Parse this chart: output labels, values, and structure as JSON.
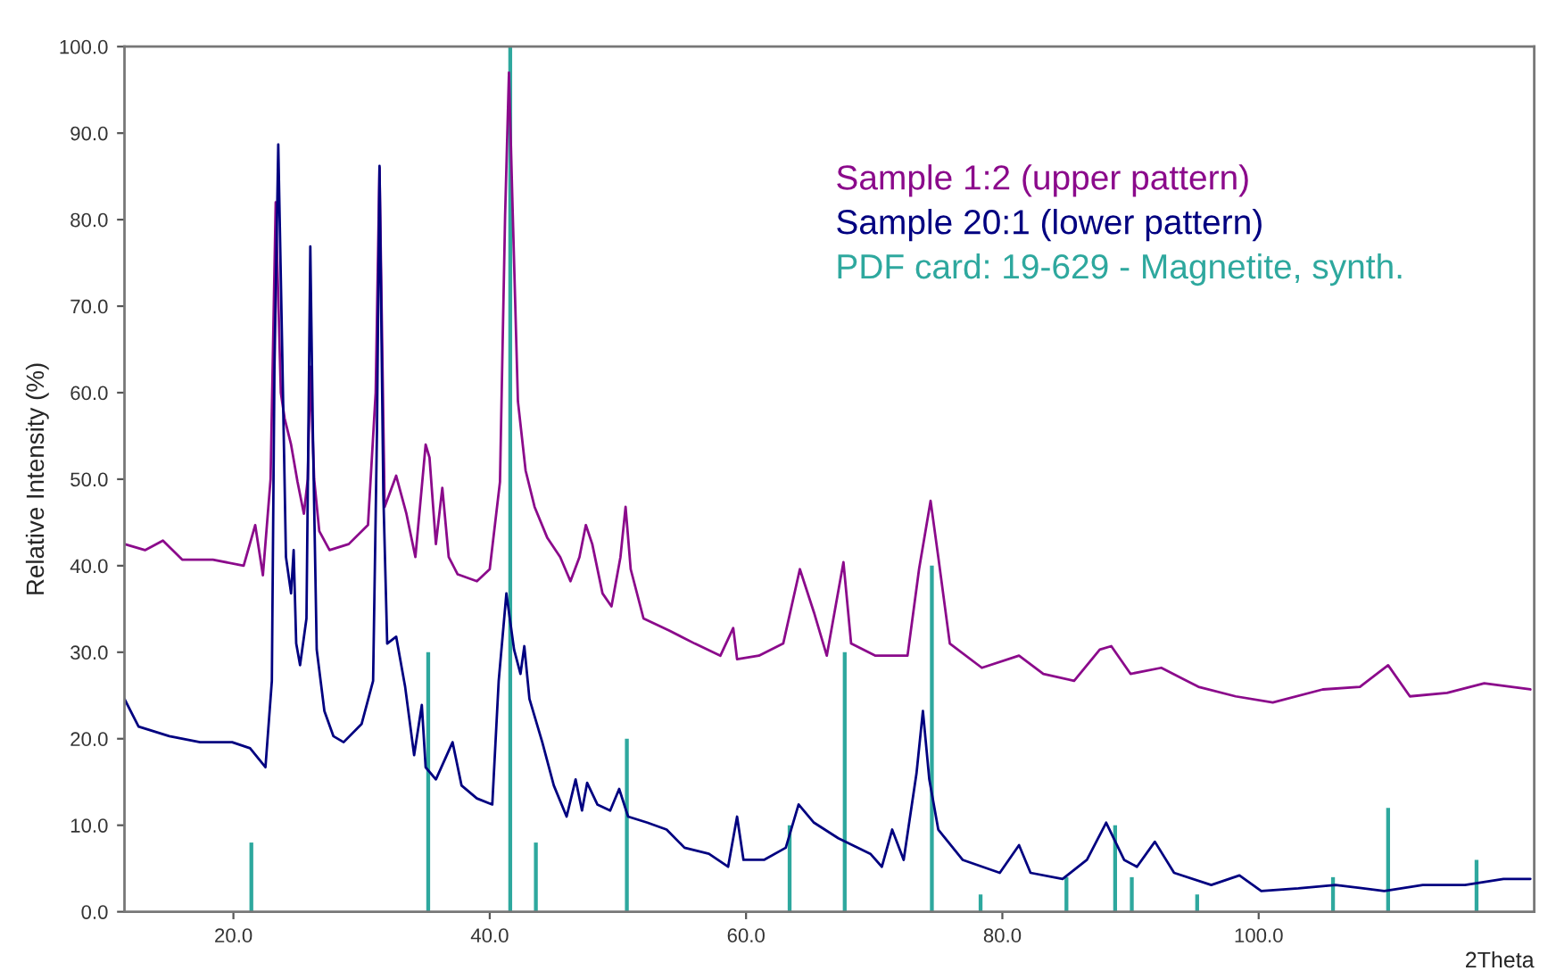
{
  "chart_data": {
    "type": "line",
    "xlabel": "2Theta",
    "ylabel": "Relative Intensity (%)",
    "xlim": [
      11.5,
      121.5
    ],
    "xticks": [
      {
        "value": 20,
        "label": "20.0"
      },
      {
        "value": 40,
        "label": "40.0"
      },
      {
        "value": 60,
        "label": "60.0"
      },
      {
        "value": 80,
        "label": "80.0"
      },
      {
        "value": 100,
        "label": "100.0"
      }
    ],
    "ylim": [
      0,
      100
    ],
    "yticks": [
      {
        "value": 0,
        "label": "0.0"
      },
      {
        "value": 10,
        "label": "10.0"
      },
      {
        "value": 20,
        "label": "20.0"
      },
      {
        "value": 30,
        "label": "30.0"
      },
      {
        "value": 40,
        "label": "40.0"
      },
      {
        "value": 50,
        "label": "50.0"
      },
      {
        "value": 60,
        "label": "60.0"
      },
      {
        "value": 70,
        "label": "70.0"
      },
      {
        "value": 80,
        "label": "80.0"
      },
      {
        "value": 90,
        "label": "90.0"
      },
      {
        "value": 100,
        "label": "100.0"
      }
    ],
    "grid": false,
    "legend": "top right",
    "marker": "none",
    "line_style": "solid",
    "series": [
      {
        "name": "Sample 1:2 (upper pattern)",
        "color": "#8b0a8b",
        "x": [
          11.5,
          13.1,
          14.5,
          16,
          18.4,
          20.8,
          21.7,
          22.3,
          22.9,
          23.3,
          23.7,
          24.0,
          24.5,
          25,
          25.5,
          25.8,
          26.0,
          26.3,
          26.7,
          27.5,
          29,
          30.5,
          31.1,
          31.4,
          31.8,
          32.7,
          33.5,
          34.2,
          35,
          35.3,
          35.8,
          36.3,
          36.8,
          37.5,
          39,
          40,
          40.8,
          41.2,
          41.5,
          41.8,
          42.2,
          42.8,
          43.5,
          44.5,
          45.5,
          46.3,
          47,
          47.5,
          48,
          48.8,
          49.5,
          50.2,
          50.6,
          51,
          52,
          54,
          56,
          58,
          59,
          59.3,
          61,
          62.9,
          64.2,
          65.3,
          66.3,
          67.6,
          68.2,
          70.1,
          72.6,
          73.5,
          74.4,
          75,
          75.9,
          78.4,
          81.3,
          83.2,
          85.6,
          87.6,
          88.5,
          90,
          92.4,
          95.3,
          98.2,
          101.1,
          105,
          107.9,
          110.1,
          111.8,
          114.7,
          117.6,
          121.2
        ],
        "values": [
          42.5,
          41.8,
          42.9,
          40.7,
          40.7,
          40,
          44.7,
          38.9,
          50,
          82,
          60,
          57,
          54,
          49.7,
          46,
          50,
          63,
          50,
          44,
          41.8,
          42.5,
          44.7,
          60,
          86,
          46.8,
          50.4,
          46,
          41,
          54,
          52.5,
          42.5,
          49,
          41,
          39,
          38.2,
          39.6,
          49.7,
          80.5,
          97,
          80.5,
          59,
          51,
          46.8,
          43.2,
          41,
          38.2,
          41,
          44.7,
          42.5,
          36.8,
          35.3,
          41,
          46.8,
          39.6,
          33.9,
          32.5,
          31,
          29.6,
          32.8,
          29.2,
          29.6,
          31,
          39.6,
          34.6,
          29.6,
          40.4,
          31,
          29.6,
          29.6,
          39.6,
          47.5,
          41,
          31,
          28.2,
          29.6,
          27.5,
          26.7,
          30.3,
          30.7,
          27.5,
          28.2,
          26,
          24.9,
          24.2,
          25.7,
          26,
          28.5,
          24.9,
          25.3,
          26.4,
          25.7
        ]
      },
      {
        "name": "Sample 20:1 (lower pattern)",
        "color": "#000080",
        "x": [
          11.5,
          12.6,
          15,
          17.4,
          19.9,
          21.3,
          22.5,
          23,
          23.2,
          23.5,
          23.8,
          24.1,
          24.5,
          24.7,
          24.9,
          25.2,
          25.7,
          26,
          26.2,
          26.5,
          27.1,
          27.8,
          28.6,
          30,
          30.9,
          31.2,
          31.4,
          31.7,
          32,
          32.7,
          33.4,
          34.1,
          34.7,
          35,
          35.8,
          37.1,
          37.8,
          39,
          40.2,
          40.7,
          41.3,
          41.9,
          42.4,
          42.7,
          43.1,
          44.1,
          45,
          46,
          46.7,
          47.2,
          47.6,
          48.4,
          49.4,
          50.1,
          50.8,
          52.3,
          53.8,
          55.2,
          57.1,
          58.6,
          59.3,
          59.8,
          61.4,
          63.1,
          64.1,
          65.3,
          67.2,
          69.7,
          70.6,
          71.4,
          72.3,
          73.3,
          73.8,
          74.3,
          75,
          76.9,
          79.8,
          81.3,
          82.2,
          84.7,
          86.6,
          88.1,
          89.5,
          90.5,
          91.9,
          93.4,
          96.3,
          98.5,
          100.2,
          103.1,
          106,
          109.8,
          112.8,
          116.1,
          119.1,
          121.2
        ],
        "values": [
          24.6,
          21.4,
          20.3,
          19.6,
          19.6,
          18.9,
          16.7,
          26.7,
          62.6,
          88.7,
          65.4,
          41,
          36.8,
          41.8,
          31,
          28.5,
          33.9,
          76.9,
          55.4,
          30.3,
          23.2,
          20.3,
          19.6,
          21.7,
          26.7,
          55.4,
          86.2,
          48.2,
          31,
          31.8,
          26,
          18.1,
          23.9,
          16.7,
          15.3,
          19.6,
          14.6,
          13.1,
          12.4,
          26.7,
          36.8,
          30.3,
          27.5,
          30.7,
          24.6,
          19.6,
          14.6,
          11,
          15.3,
          11.7,
          14.9,
          12.4,
          11.7,
          14.2,
          11,
          10.3,
          9.5,
          7.4,
          6.7,
          5.2,
          11,
          6,
          6,
          7.4,
          12.4,
          10.3,
          8.5,
          6.7,
          5.2,
          9.5,
          6,
          16,
          23.2,
          15.3,
          9.5,
          6,
          4.5,
          7.7,
          4.5,
          3.8,
          6,
          10.3,
          6,
          5.2,
          8.1,
          4.5,
          3.1,
          4.2,
          2.4,
          2.7,
          3.1,
          2.4,
          3.1,
          3.1,
          3.8,
          3.8
        ]
      },
      {
        "name": "PDF card: 19-629 - Magnetite, synth.",
        "color": "#2ea89e",
        "type": "bar",
        "x": [
          21.4,
          35.2,
          41.6,
          43.6,
          50.7,
          63.4,
          67.7,
          74.5,
          78.3,
          85.0,
          88.8,
          90.1,
          95.2,
          105.8,
          110.1,
          117.0
        ],
        "values": [
          8,
          30,
          100,
          8,
          20,
          10,
          30,
          40,
          2,
          4,
          10,
          4,
          2,
          4,
          12,
          6
        ]
      }
    ]
  }
}
